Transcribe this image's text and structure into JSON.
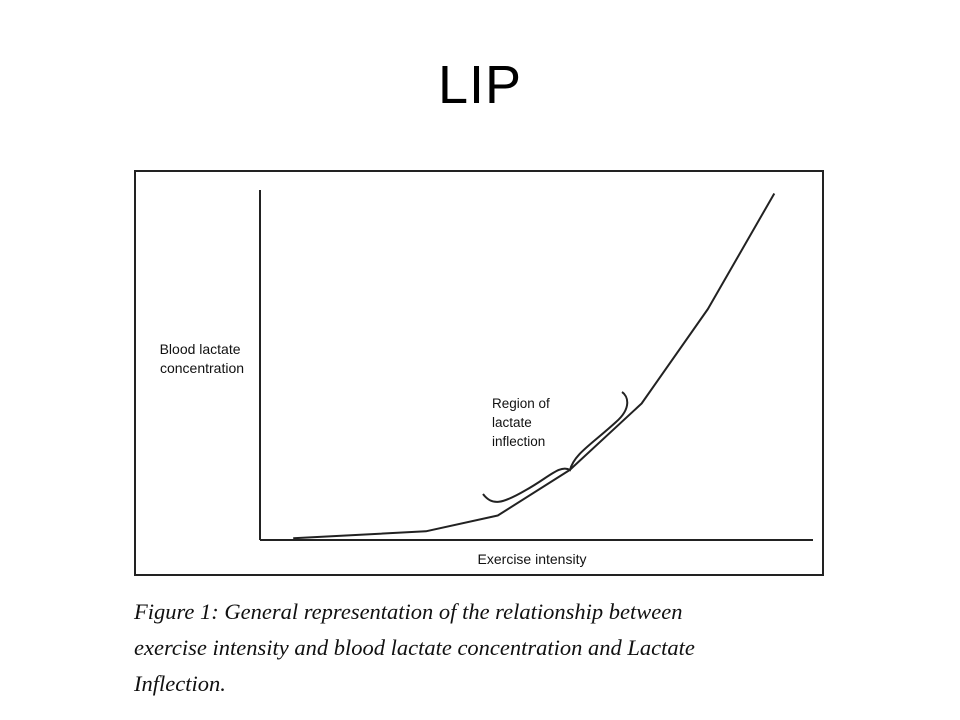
{
  "slide": {
    "title": "LIP"
  },
  "chart_data": {
    "type": "line",
    "xlabel": "Exercise intensity",
    "ylabel": "Blood lactate concentration",
    "ylabel_lines": [
      "Blood lactate",
      "concentration"
    ],
    "xlim": [
      0,
      100
    ],
    "ylim": [
      0,
      100
    ],
    "grid": false,
    "legend": "none",
    "series": [
      {
        "x": [
          6,
          30,
          43,
          56,
          69,
          81,
          93
        ],
        "y": [
          0.5,
          2.5,
          7,
          20,
          39,
          66,
          99
        ]
      }
    ],
    "annotations": [
      {
        "text_lines": [
          "Region of",
          "lactate",
          "inflection"
        ],
        "marker": "curly-brace",
        "points_to_x_range": [
          41,
          67
        ]
      }
    ]
  },
  "caption": {
    "lines": [
      "Figure 1: General representation of the relationship between",
      "exercise intensity and blood lactate concentration and Lactate",
      "Inflection."
    ]
  }
}
